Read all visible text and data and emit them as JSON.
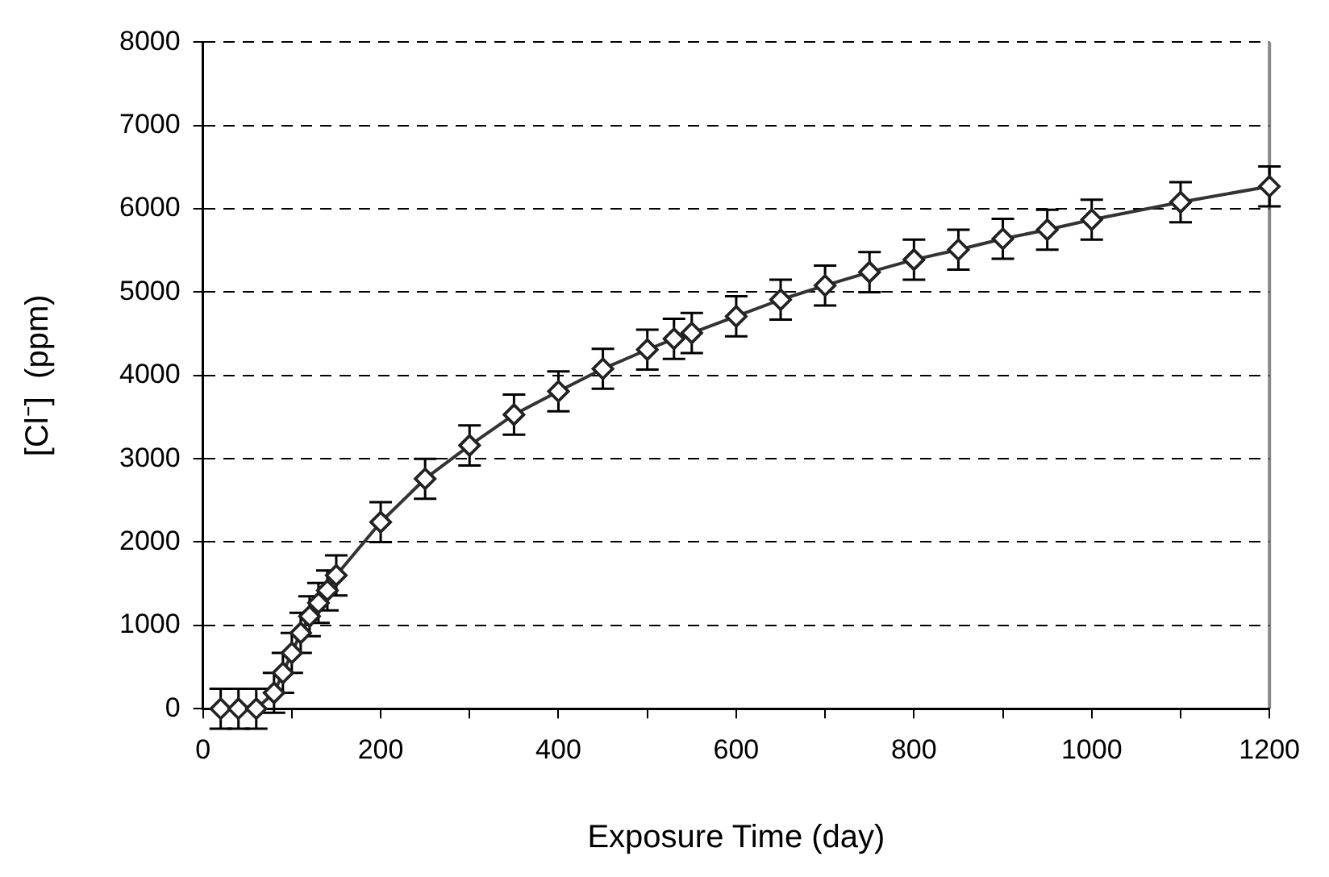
{
  "chart_data": {
    "type": "line",
    "xlabel": "Exposure Time (day)",
    "ylabel": "[Cl⁻]  (ppm)",
    "x": [
      20,
      40,
      60,
      80,
      90,
      100,
      110,
      120,
      130,
      140,
      150,
      200,
      250,
      300,
      350,
      400,
      450,
      500,
      530,
      550,
      600,
      650,
      700,
      750,
      800,
      850,
      900,
      950,
      1000,
      1100,
      1200
    ],
    "series": [
      {
        "color": "#333333",
        "values": [
          0,
          0,
          0,
          190,
          430,
          670,
          910,
          1110,
          1270,
          1420,
          1600,
          2240,
          2760,
          3160,
          3530,
          3810,
          4080,
          4310,
          4440,
          4510,
          4710,
          4910,
          5080,
          5240,
          5390,
          5510,
          5640,
          5750,
          5870,
          6080,
          6270
        ],
        "errors": [
          240,
          240,
          240,
          240,
          240,
          240,
          240,
          240,
          240,
          240,
          240,
          240,
          240,
          240,
          240,
          240,
          240,
          240,
          240,
          240,
          240,
          240,
          240,
          240,
          240,
          240,
          240,
          240,
          240,
          240,
          240
        ]
      }
    ],
    "xlim": [
      0,
      1200
    ],
    "xticks": [
      0,
      {
        "value": 100,
        "label": null
      },
      200,
      {
        "value": 300,
        "label": null
      },
      400,
      {
        "value": 500,
        "label": null
      },
      600,
      {
        "value": 700,
        "label": null
      },
      800,
      {
        "value": 900,
        "label": null
      },
      1000,
      {
        "value": 1100,
        "label": null
      },
      1200
    ],
    "ylim": [
      0,
      8000
    ],
    "yticks": [
      0,
      1000,
      2000,
      3000,
      4000,
      5000,
      6000,
      7000,
      8000
    ],
    "grid": "y",
    "legend": false,
    "marker": "diamond",
    "line_style": "solid"
  }
}
